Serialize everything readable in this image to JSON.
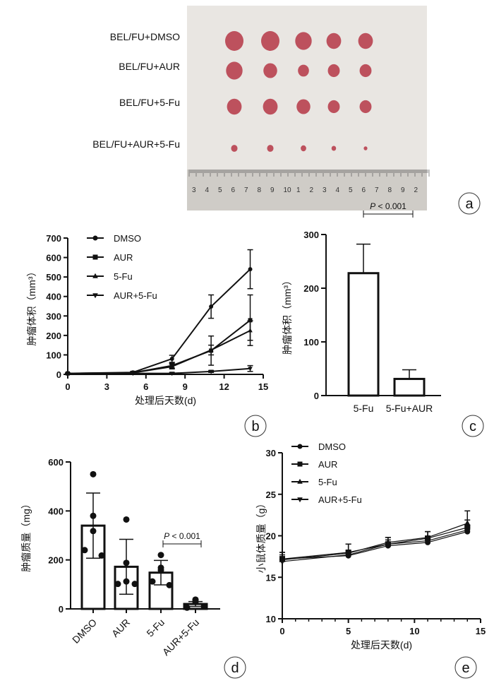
{
  "panel_letters": [
    "a",
    "b",
    "c",
    "d",
    "e"
  ],
  "photo": {
    "row_labels": [
      "BEL/FU+DMSO",
      "BEL/FU+AUR",
      "BEL/FU+5-Fu",
      "BEL/FU+AUR+5-Fu"
    ],
    "ruler_numbers": [
      "3",
      "4",
      "5",
      "6",
      "7",
      "8",
      "9",
      "10",
      "1",
      "2",
      "3",
      "4",
      "5",
      "6",
      "7",
      "8",
      "9",
      "2"
    ],
    "tumor_relative_sizes": [
      [
        1.0,
        1.0,
        0.9,
        0.8,
        0.8
      ],
      [
        0.9,
        0.75,
        0.6,
        0.65,
        0.65
      ],
      [
        0.8,
        0.8,
        0.75,
        0.65,
        0.65
      ],
      [
        0.35,
        0.35,
        0.3,
        0.25,
        0.2
      ]
    ],
    "colors": {
      "background": "#e9e6e2",
      "tumor": "#b8404f",
      "ruler": "#cfccc7"
    }
  },
  "chart_data": [
    {
      "id": "b",
      "type": "line",
      "xlabel": "处理后天数(d)",
      "ylabel": "肿瘤体积（mm³）",
      "xlim": [
        0,
        15
      ],
      "ylim": [
        0,
        700
      ],
      "xticks": [
        "0",
        "3",
        "6",
        "9",
        "12",
        "15"
      ],
      "yticks": [
        "0",
        "100",
        "200",
        "300",
        "400",
        "500",
        "600",
        "700"
      ],
      "legend_position": "top-left",
      "x": [
        0,
        5,
        8,
        11,
        14
      ],
      "series": [
        {
          "name": "DMSO",
          "marker": "circle",
          "values": [
            5,
            10,
            80,
            348,
            540
          ],
          "errors": [
            2,
            5,
            18,
            60,
            100
          ]
        },
        {
          "name": "AUR",
          "marker": "square",
          "values": [
            5,
            8,
            45,
            122,
            278
          ],
          "errors": [
            2,
            4,
            12,
            75,
            130
          ]
        },
        {
          "name": "5-Fu",
          "marker": "triangle",
          "values": [
            5,
            8,
            40,
            125,
            225
          ],
          "errors": [
            2,
            4,
            12,
            25,
            50
          ]
        },
        {
          "name": "AUR+5-Fu",
          "marker": "triangle-down",
          "values": [
            3,
            5,
            5,
            15,
            30
          ],
          "errors": [
            1,
            2,
            5,
            5,
            15
          ]
        }
      ]
    },
    {
      "id": "c",
      "type": "bar",
      "ylabel": "肿瘤体积（mm³）",
      "ylim": [
        0,
        300
      ],
      "yticks": [
        "0",
        "100",
        "200",
        "300"
      ],
      "categories": [
        "5-Fu",
        "5-Fu+AUR"
      ],
      "values": [
        228,
        31
      ],
      "errors": [
        54,
        17
      ],
      "annotation": {
        "p_italic": "P",
        "text": " < 0.001"
      }
    },
    {
      "id": "d",
      "type": "bar",
      "ylabel": "肿瘤质量（mg）",
      "ylim": [
        0,
        600
      ],
      "yticks": [
        "0",
        "200",
        "400",
        "600"
      ],
      "categories": [
        "DMSO",
        "AUR",
        "5-Fu",
        "AUR+5-Fu"
      ],
      "values": [
        340,
        172,
        148,
        20
      ],
      "errors": [
        133,
        112,
        50,
        10
      ],
      "points": [
        [
          550,
          380,
          318,
          240,
          218
        ],
        [
          365,
          188,
          112,
          102,
          102
        ],
        [
          220,
          168,
          158,
          112,
          97
        ],
        [
          38,
          36,
          28,
          5,
          10
        ]
      ],
      "annotation": {
        "p_italic": "P",
        "text": " < 0.001"
      }
    },
    {
      "id": "e",
      "type": "line",
      "xlabel": "处理后天数(d)",
      "ylabel": "小鼠体质量（g）",
      "xlim": [
        0,
        15
      ],
      "ylim": [
        10,
        30
      ],
      "xticks": [
        "0",
        "5",
        "10",
        "15"
      ],
      "yticks": [
        "10",
        "15",
        "20",
        "25",
        "30"
      ],
      "legend_position": "top-left",
      "x": [
        0,
        5,
        8,
        11,
        14
      ],
      "series": [
        {
          "name": "DMSO",
          "marker": "circle",
          "values": [
            17.2,
            17.6,
            18.8,
            19.2,
            20.5
          ],
          "errors": [
            0.5,
            0.4,
            0.4,
            0.5,
            0.6
          ]
        },
        {
          "name": "AUR",
          "marker": "square",
          "values": [
            17.2,
            18.0,
            19.0,
            19.7,
            21.0
          ],
          "errors": [
            0.8,
            1.0,
            0.8,
            0.8,
            0.9
          ]
        },
        {
          "name": "5-Fu",
          "marker": "triangle",
          "values": [
            17.1,
            17.9,
            19.2,
            19.8,
            21.5
          ],
          "errors": [
            0.9,
            1.1,
            0.6,
            0.7,
            1.5
          ]
        },
        {
          "name": "AUR+5-Fu",
          "marker": "triangle-down",
          "values": [
            16.9,
            17.7,
            19.0,
            19.4,
            20.7
          ],
          "errors": [
            0.6,
            0.5,
            0.5,
            0.5,
            0.6
          ]
        }
      ]
    }
  ]
}
